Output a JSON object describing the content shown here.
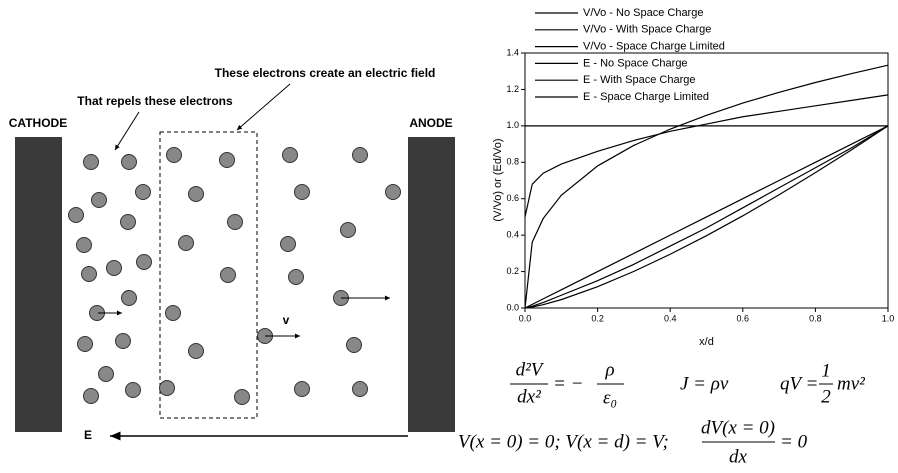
{
  "diagram": {
    "annotation_top": "These electrons create an electric field",
    "annotation_left": "That repels these electrons",
    "cathode": "CATHODE",
    "anode": "ANODE",
    "velocity": "v",
    "field": "E"
  },
  "chart_data": {
    "type": "line",
    "x_label": "x/d",
    "y_label": "(V/Vo) or (Ed/Vo)",
    "x": [
      0,
      0.02,
      0.05,
      0.1,
      0.2,
      0.3,
      0.4,
      0.5,
      0.6,
      0.7,
      0.8,
      0.9,
      1
    ],
    "series": [
      {
        "name": "V/Vo - No Space Charge",
        "color": "#000000",
        "values": [
          0,
          0.02,
          0.05,
          0.1,
          0.2,
          0.3,
          0.4,
          0.5,
          0.6,
          0.7,
          0.8,
          0.9,
          1
        ]
      },
      {
        "name": "V/Vo - With Space Charge",
        "color": "#000000",
        "values": [
          0,
          0.01,
          0.03,
          0.07,
          0.15,
          0.24,
          0.34,
          0.44,
          0.55,
          0.66,
          0.77,
          0.88,
          1
        ]
      },
      {
        "name": "V/Vo - Space Charge Limited",
        "color": "#000000",
        "values": [
          0,
          0.005,
          0.018,
          0.046,
          0.117,
          0.201,
          0.295,
          0.397,
          0.506,
          0.622,
          0.743,
          0.869,
          1
        ]
      },
      {
        "name": "E - No Space Charge",
        "color": "#000000",
        "values": [
          1,
          1,
          1,
          1,
          1,
          1,
          1,
          1,
          1,
          1,
          1,
          1,
          1
        ]
      },
      {
        "name": "E - With Space Charge",
        "color": "#000000",
        "values": [
          0.5,
          0.68,
          0.74,
          0.79,
          0.86,
          0.92,
          0.97,
          1.01,
          1.05,
          1.08,
          1.11,
          1.14,
          1.17
        ]
      },
      {
        "name": "E - Space Charge Limited",
        "color": "#000000",
        "values": [
          0,
          0.362,
          0.491,
          0.619,
          0.78,
          0.893,
          0.982,
          1.058,
          1.125,
          1.184,
          1.238,
          1.287,
          1.333
        ]
      }
    ],
    "xlim": [
      0,
      1
    ],
    "ylim": [
      0,
      1.4
    ],
    "xticks": [
      {
        "value": 0,
        "label": "0.0"
      },
      0.2,
      0.4,
      0.6,
      0.8,
      {
        "value": 1,
        "label": "1.0"
      }
    ],
    "yticks": [
      {
        "value": 0,
        "label": "0.0"
      },
      0.2,
      0.4,
      0.6,
      0.8,
      {
        "value": 1,
        "label": "1.0"
      },
      1.2,
      1.4
    ]
  },
  "equations": {
    "poisson": {
      "num": "d²V",
      "den": "dx²",
      "eq": "= −",
      "rhs_num": "ρ",
      "rhs_den": "ε₀"
    },
    "current": "J = ρv",
    "energy": {
      "lhs": "qV =",
      "num": "1",
      "den": "2",
      "rhs": "mv²"
    },
    "boundary": {
      "left": "V(x = 0) = 0; V(x = d) = V;",
      "num": "dV(x = 0)",
      "den": "dx",
      "right": "= 0"
    }
  }
}
